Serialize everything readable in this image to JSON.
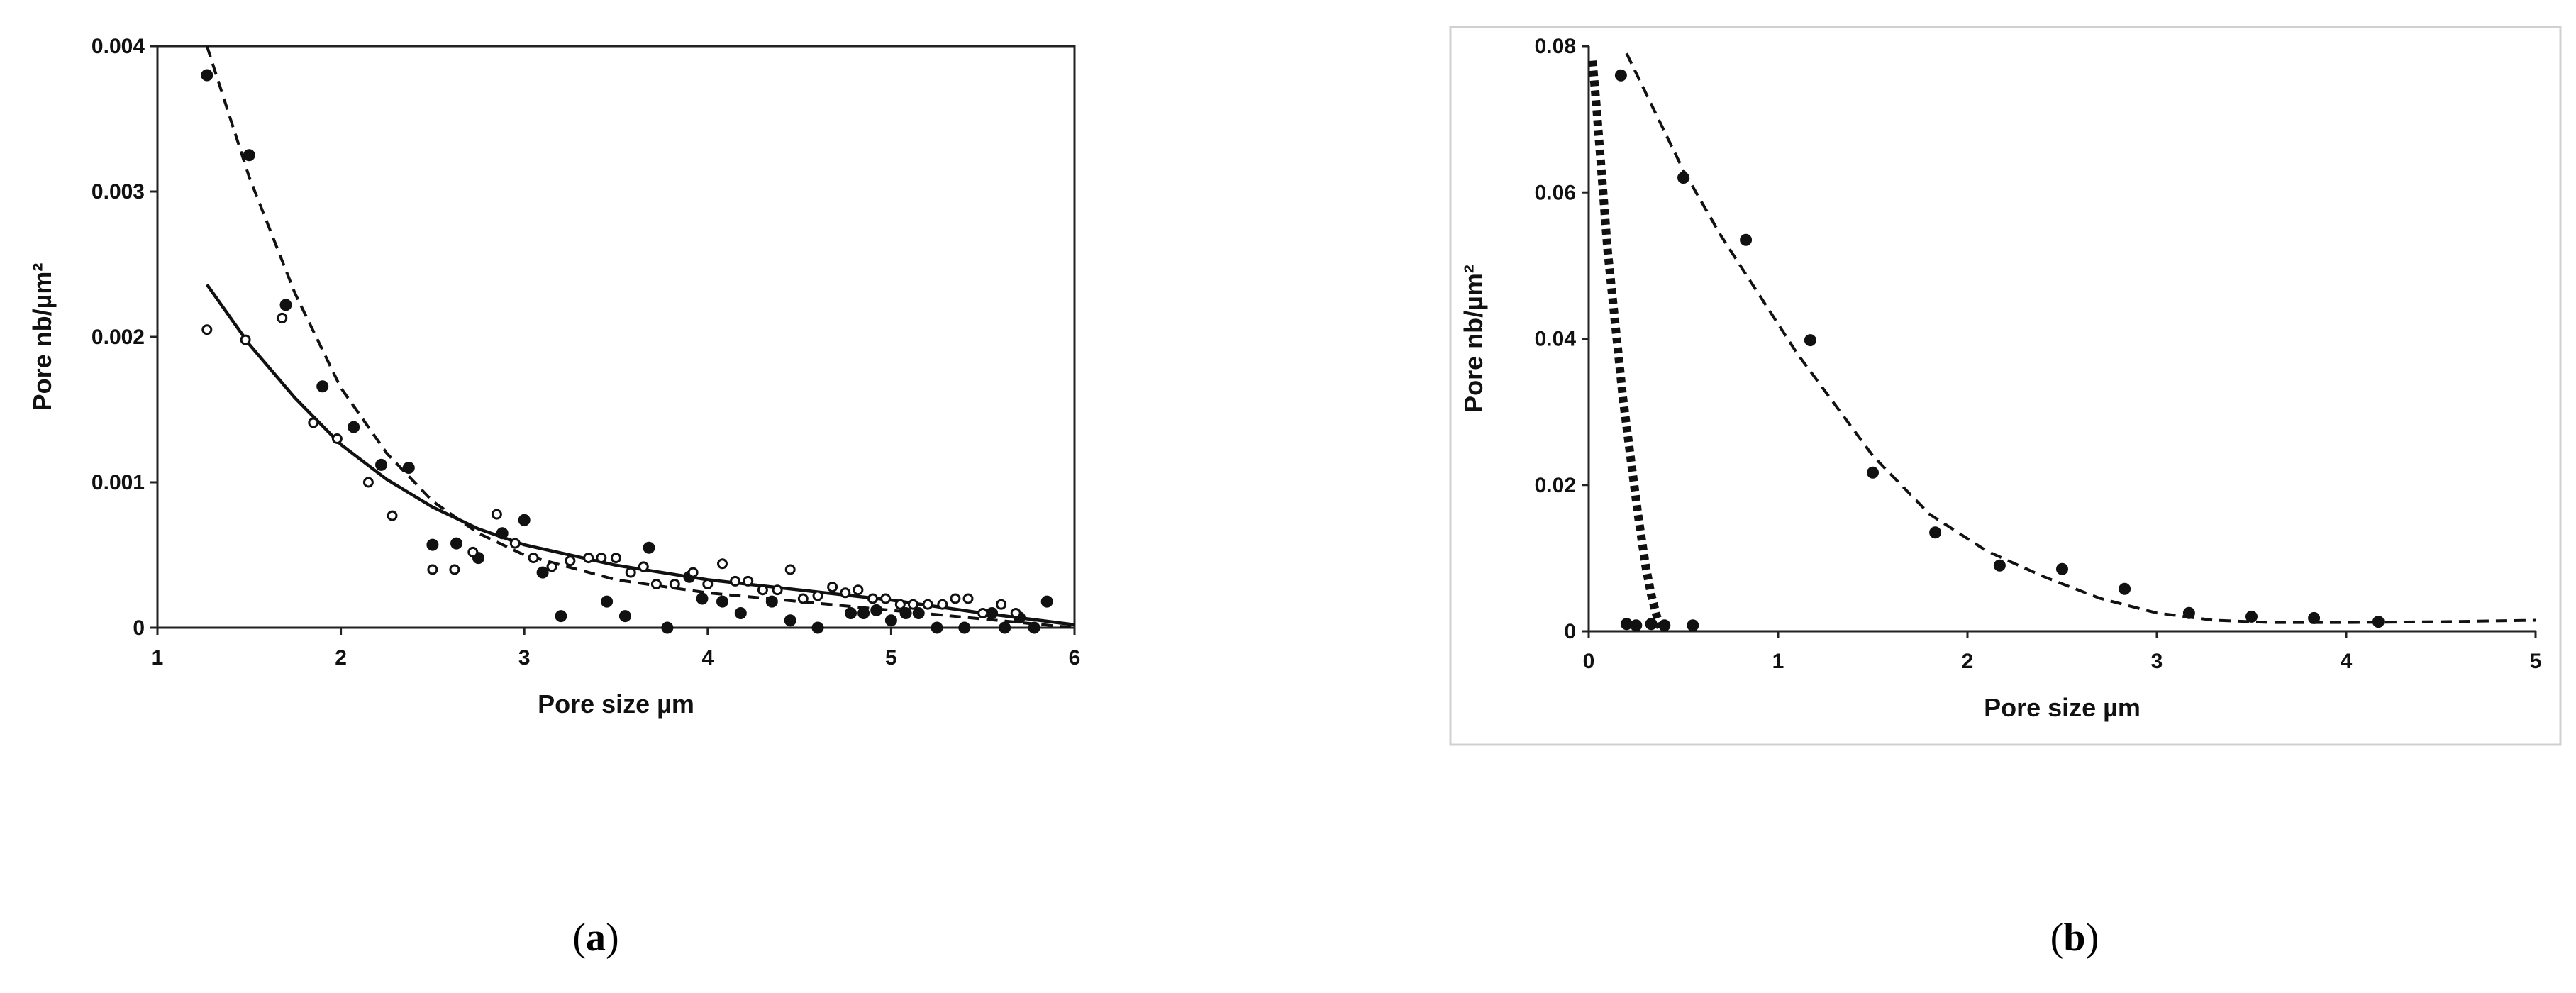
{
  "chart_data": [
    {
      "type": "scatter",
      "panel_label": "a",
      "xlabel": "Pore size µm",
      "ylabel": "Pore nb/µm²",
      "xlim": [
        1,
        6
      ],
      "ylim": [
        0,
        0.004
      ],
      "x_ticks": [
        "1",
        "2",
        "3",
        "4",
        "5",
        "6"
      ],
      "y_ticks": [
        "0",
        "0.001",
        "0.002",
        "0.003",
        "0.004"
      ],
      "grid": false,
      "frame": true,
      "series": [
        {
          "marker": "filled-circle",
          "color": "#111111",
          "x": [
            1.27,
            1.5,
            1.7,
            1.9,
            2.07,
            2.22,
            2.37,
            2.5,
            2.63,
            2.75,
            2.88,
            3.0,
            3.1,
            3.2,
            3.45,
            3.55,
            3.68,
            3.78,
            3.9,
            3.97,
            4.08,
            4.18,
            4.35,
            4.45,
            4.6,
            4.78,
            4.85,
            4.92,
            5.0,
            5.08,
            5.15,
            5.25,
            5.4,
            5.55,
            5.62,
            5.7,
            5.78,
            5.85
          ],
          "y": [
            0.0038,
            0.00325,
            0.00222,
            0.00166,
            0.00138,
            0.00112,
            0.0011,
            0.00057,
            0.00058,
            0.00048,
            0.00065,
            0.00074,
            0.00038,
            8e-05,
            0.00018,
            8e-05,
            0.00055,
            0.0,
            0.00035,
            0.0002,
            0.00018,
            0.0001,
            0.00018,
            5e-05,
            0.0,
            0.0001,
            0.0001,
            0.00012,
            5e-05,
            0.0001,
            0.0001,
            0.0,
            0.0,
            0.0001,
            0.0,
            7e-05,
            0.0,
            0.00018
          ]
        },
        {
          "marker": "open-circle",
          "color": "#111111",
          "x": [
            1.27,
            1.48,
            1.68,
            1.85,
            1.98,
            2.15,
            2.28,
            2.5,
            2.62,
            2.72,
            2.85,
            2.95,
            3.05,
            3.15,
            3.25,
            3.35,
            3.42,
            3.5,
            3.58,
            3.65,
            3.72,
            3.82,
            3.92,
            4.0,
            4.08,
            4.15,
            4.22,
            4.3,
            4.38,
            4.45,
            4.52,
            4.6,
            4.68,
            4.75,
            4.82,
            4.9,
            4.97,
            5.05,
            5.12,
            5.2,
            5.28,
            5.35,
            5.42,
            5.5,
            5.6,
            5.68
          ],
          "y": [
            0.00205,
            0.00198,
            0.00213,
            0.00141,
            0.0013,
            0.001,
            0.00077,
            0.0004,
            0.0004,
            0.00052,
            0.00078,
            0.00058,
            0.00048,
            0.00042,
            0.00046,
            0.00048,
            0.00048,
            0.00048,
            0.00038,
            0.00042,
            0.0003,
            0.0003,
            0.00038,
            0.0003,
            0.00044,
            0.00032,
            0.00032,
            0.00026,
            0.00026,
            0.0004,
            0.0002,
            0.00022,
            0.00028,
            0.00024,
            0.00026,
            0.0002,
            0.0002,
            0.00016,
            0.00016,
            0.00016,
            0.00016,
            0.0002,
            0.0002,
            0.0001,
            0.00016,
            0.0001
          ]
        },
        {
          "line_style": "dashed",
          "color": "#111111",
          "x": [
            1.27,
            1.5,
            1.75,
            2.0,
            2.25,
            2.5,
            2.75,
            3.0,
            3.5,
            4.0,
            4.5,
            5.0,
            5.5,
            6.0
          ],
          "y": [
            0.004,
            0.0031,
            0.0023,
            0.00165,
            0.0012,
            0.00087,
            0.00065,
            0.0005,
            0.00033,
            0.00024,
            0.00018,
            0.00012,
            6e-05,
            0.0
          ]
        },
        {
          "line_style": "solid",
          "color": "#111111",
          "x": [
            1.27,
            1.5,
            1.75,
            2.0,
            2.25,
            2.5,
            2.75,
            3.0,
            3.5,
            4.0,
            4.5,
            5.0,
            5.5,
            6.0
          ],
          "y": [
            0.00236,
            0.00195,
            0.00158,
            0.00126,
            0.00102,
            0.00083,
            0.00068,
            0.00057,
            0.00043,
            0.00033,
            0.00026,
            0.00019,
            0.0001,
            2e-05
          ]
        }
      ]
    },
    {
      "type": "scatter",
      "panel_label": "b",
      "xlabel": "Pore size µm",
      "ylabel": "Pore nb/µm²",
      "xlim": [
        0,
        5
      ],
      "ylim": [
        0,
        0.08
      ],
      "x_ticks": [
        "0",
        "1",
        "2",
        "3",
        "4",
        "5"
      ],
      "y_ticks": [
        "0",
        "0.02",
        "0.04",
        "0.06",
        "0.08"
      ],
      "grid": false,
      "frame": true,
      "series": [
        {
          "marker": "filled-circle",
          "color": "#111111",
          "x": [
            0.17,
            0.5,
            0.83,
            1.17,
            1.5,
            1.83,
            2.17,
            2.5,
            2.83,
            3.17,
            3.5,
            3.83,
            4.17
          ],
          "y": [
            0.076,
            0.062,
            0.0535,
            0.0398,
            0.0217,
            0.0135,
            0.009,
            0.0085,
            0.0058,
            0.0025,
            0.002,
            0.0018,
            0.0013
          ]
        },
        {
          "marker": "filled-circle",
          "color": "#111111",
          "x": [
            0.2,
            0.25,
            0.33,
            0.4,
            0.55
          ],
          "y": [
            0.001,
            0.0008,
            0.001,
            0.0008,
            0.0008
          ]
        },
        {
          "line_style": "dashed",
          "color": "#111111",
          "x": [
            0.2,
            0.35,
            0.5,
            0.7,
            0.9,
            1.1,
            1.3,
            1.5,
            1.8,
            2.1,
            2.4,
            2.7,
            3.0,
            3.3,
            3.6,
            4.0,
            4.5,
            5.0
          ],
          "y": [
            0.079,
            0.071,
            0.063,
            0.054,
            0.046,
            0.038,
            0.031,
            0.024,
            0.016,
            0.011,
            0.0075,
            0.0045,
            0.0025,
            0.0015,
            0.0012,
            0.0012,
            0.0013,
            0.0015
          ]
        },
        {
          "line_style": "dashed-heavy",
          "color": "#111111",
          "x": [
            0.02,
            0.04,
            0.07,
            0.1,
            0.14,
            0.18,
            0.22,
            0.26,
            0.3,
            0.33,
            0.36,
            0.38
          ],
          "y": [
            0.078,
            0.072,
            0.062,
            0.052,
            0.042,
            0.032,
            0.024,
            0.016,
            0.009,
            0.005,
            0.002,
            0.0005
          ]
        }
      ]
    }
  ]
}
